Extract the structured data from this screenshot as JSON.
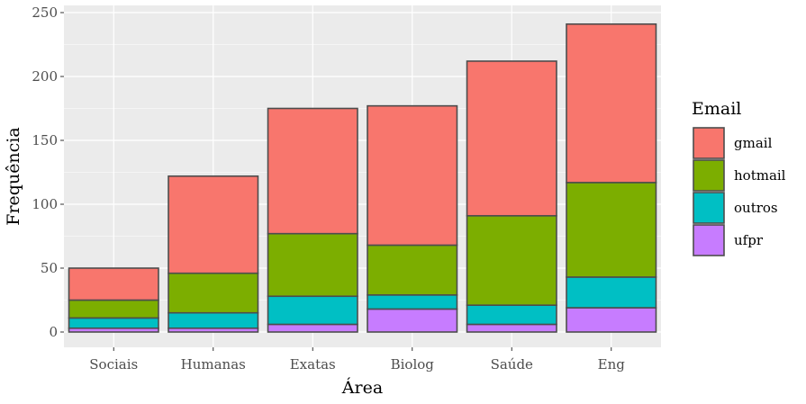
{
  "chart_data": {
    "type": "bar",
    "stacked": true,
    "categories": [
      "Sociais",
      "Humanas",
      "Exatas",
      "Biolog",
      "Saúde",
      "Eng"
    ],
    "series": [
      {
        "name": "ufpr",
        "color": "#C77CFF",
        "values": [
          3,
          3,
          6,
          18,
          6,
          19
        ]
      },
      {
        "name": "outros",
        "color": "#00BFC4",
        "values": [
          8,
          12,
          22,
          11,
          15,
          24
        ]
      },
      {
        "name": "hotmail",
        "color": "#7CAE00",
        "values": [
          14,
          31,
          49,
          39,
          70,
          74
        ]
      },
      {
        "name": "gmail",
        "color": "#F8766D",
        "values": [
          25,
          76,
          98,
          109,
          121,
          124
        ]
      }
    ],
    "xlabel": "Área",
    "ylabel": "Frequência",
    "ylim": [
      0,
      250
    ],
    "yticks": [
      0,
      50,
      100,
      150,
      200,
      250
    ],
    "grid": true,
    "legend": {
      "title": "Email",
      "placement": "right",
      "entries": [
        "gmail",
        "hotmail",
        "outros",
        "ufpr"
      ]
    },
    "panel_background": "#EBEBEB",
    "bar_outline": "#4D4D4D"
  }
}
